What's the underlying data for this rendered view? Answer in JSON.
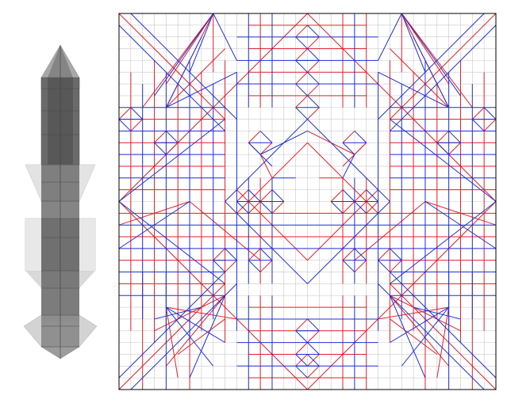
{
  "figure": {
    "panels": [
      {
        "id": "folded-base-preview",
        "kind": "x-ray silhouette of folded base"
      },
      {
        "id": "crease-pattern",
        "kind": "origami crease pattern"
      }
    ],
    "crease_pattern": {
      "grid_divisions": 32,
      "colors": {
        "mountain": "#e0202a",
        "valley": "#1f2fd6",
        "grid": "#c9c9c9",
        "border": "#000000"
      },
      "line_types": [
        "mountain",
        "valley",
        "grid"
      ]
    },
    "preview": {
      "colors": {
        "light": "#d0d0d0",
        "mid": "#9a9a9a",
        "dark": "#5c5c5c"
      }
    }
  }
}
